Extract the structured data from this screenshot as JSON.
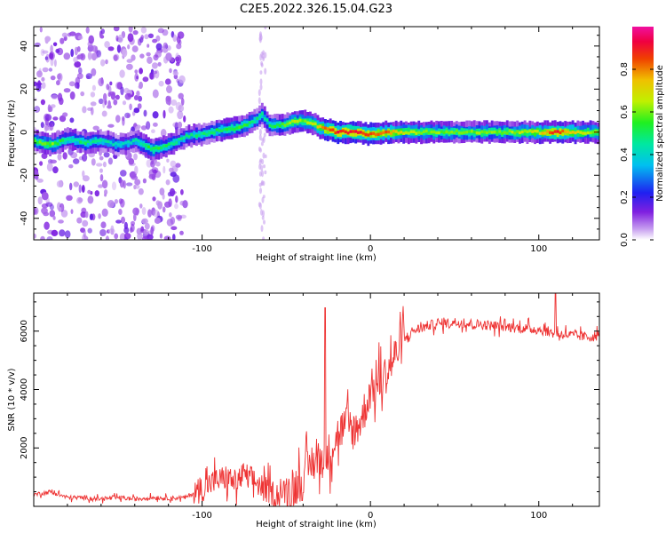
{
  "title": "C2E5.2022.326.15.04.G23",
  "chart_data": [
    {
      "type": "heatmap",
      "xlabel": "Height of straight line (km)",
      "ylabel": "Frequency (Hz)",
      "xlim": [
        -200,
        136
      ],
      "ylim": [
        -50,
        49
      ],
      "xticks": [
        -100,
        0,
        100
      ],
      "xtick_labels": [
        "-100",
        "0",
        "100"
      ],
      "yticks": [
        -40,
        -20,
        0,
        20,
        40
      ],
      "ytick_labels": [
        "-40",
        "-20",
        "0",
        "20",
        "40"
      ],
      "colorbar": {
        "label": "Normalized spectral amplitude",
        "range": [
          0,
          1
        ],
        "ticks": [
          0.0,
          0.2,
          0.4,
          0.6,
          0.8
        ],
        "tick_labels": [
          "0.0",
          "0.2",
          "0.4",
          "0.6",
          "0.8"
        ]
      },
      "ridge": {
        "x": [
          -200,
          -190,
          -180,
          -170,
          -160,
          -150,
          -140,
          -130,
          -120,
          -110,
          -100,
          -90,
          -80,
          -70,
          -65,
          -60,
          -55,
          -50,
          -45,
          -40,
          -35,
          -30,
          -25,
          -20,
          -10,
          0,
          10,
          20,
          40,
          60,
          80,
          100,
          110,
          120,
          136
        ],
        "y": [
          -4,
          -6,
          -3,
          -5,
          -4,
          -6,
          -4,
          -8,
          -6,
          -2,
          -1,
          1,
          2,
          5,
          8,
          3,
          3,
          4,
          5,
          5,
          4,
          2,
          1,
          0,
          0,
          -1,
          0,
          0,
          0,
          0,
          0,
          0,
          0,
          0,
          0
        ],
        "amplitude": [
          0.55,
          0.6,
          0.45,
          0.5,
          0.45,
          0.4,
          0.45,
          0.55,
          0.5,
          0.45,
          0.5,
          0.5,
          0.55,
          0.5,
          0.45,
          0.5,
          0.55,
          0.6,
          0.65,
          0.6,
          0.65,
          0.75,
          0.85,
          0.9,
          0.9,
          0.85,
          0.8,
          0.65,
          0.6,
          0.6,
          0.6,
          0.7,
          0.9,
          0.7,
          0.6
        ]
      }
    },
    {
      "type": "line",
      "xlabel": "Height of straight line (km)",
      "ylabel": "SNR (10 * v/v)",
      "xlim": [
        -200,
        136
      ],
      "ylim": [
        0,
        7300
      ],
      "xticks": [
        -100,
        0,
        100
      ],
      "xtick_labels": [
        "-100",
        "0",
        "100"
      ],
      "yticks": [
        2000,
        4000,
        6000
      ],
      "ytick_labels": [
        "2000",
        "4000",
        "6000"
      ],
      "color": "#ee3333",
      "series": [
        {
          "x": [
            -200,
            -190,
            -180,
            -170,
            -160,
            -150,
            -140,
            -130,
            -120,
            -110,
            -100,
            -95,
            -90,
            -85,
            -80,
            -75,
            -70,
            -65,
            -60,
            -55,
            -50,
            -45,
            -40,
            -35,
            -30,
            -25,
            -20,
            -15,
            -10,
            -5,
            0,
            5,
            10,
            15,
            20,
            25,
            30,
            35,
            40,
            50,
            60,
            70,
            80,
            90,
            100,
            105,
            110,
            115,
            120,
            130,
            136
          ],
          "y": [
            400,
            500,
            300,
            300,
            250,
            300,
            250,
            300,
            280,
            300,
            600,
            800,
            900,
            1000,
            800,
            1100,
            900,
            700,
            500,
            400,
            500,
            700,
            900,
            1500,
            1600,
            1800,
            2400,
            2800,
            2600,
            3000,
            4000,
            4200,
            4600,
            5200,
            5700,
            6000,
            6100,
            6200,
            6250,
            6300,
            6250,
            6200,
            6150,
            6100,
            6050,
            6000,
            5900,
            5900,
            5850,
            5800,
            5850
          ]
        }
      ]
    }
  ]
}
